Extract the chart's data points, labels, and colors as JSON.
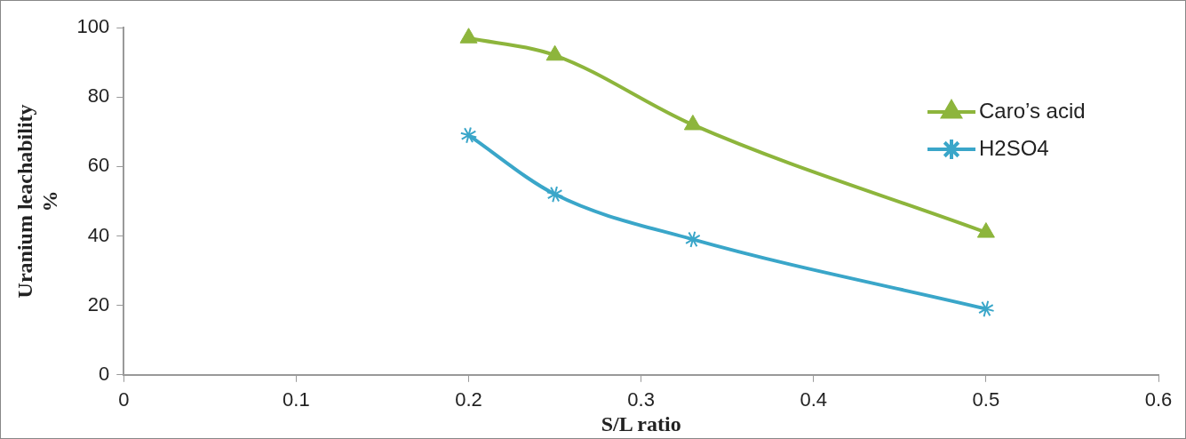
{
  "chart_data": {
    "type": "line",
    "xlabel": "S/L ratio",
    "ylabel": "Uranium leachability %",
    "xlim": [
      0,
      0.6
    ],
    "xticks": [
      0,
      0.1,
      0.2,
      0.3,
      0.4,
      0.5,
      0.6
    ],
    "ylim": [
      0,
      100
    ],
    "yticks": [
      0,
      20,
      40,
      60,
      80,
      100
    ],
    "grid": false,
    "legend": "top right",
    "series": [
      {
        "name": "Caro’s acid",
        "color": "#8db53c",
        "marker": "triangle",
        "x": [
          0.2,
          0.25,
          0.33,
          0.5
        ],
        "values": [
          97,
          92,
          72,
          41
        ]
      },
      {
        "name": "H2SO4",
        "color": "#3aa6c9",
        "marker": "cross",
        "x": [
          0.2,
          0.25,
          0.33,
          0.5
        ],
        "values": [
          69,
          52,
          39,
          19
        ]
      }
    ]
  }
}
